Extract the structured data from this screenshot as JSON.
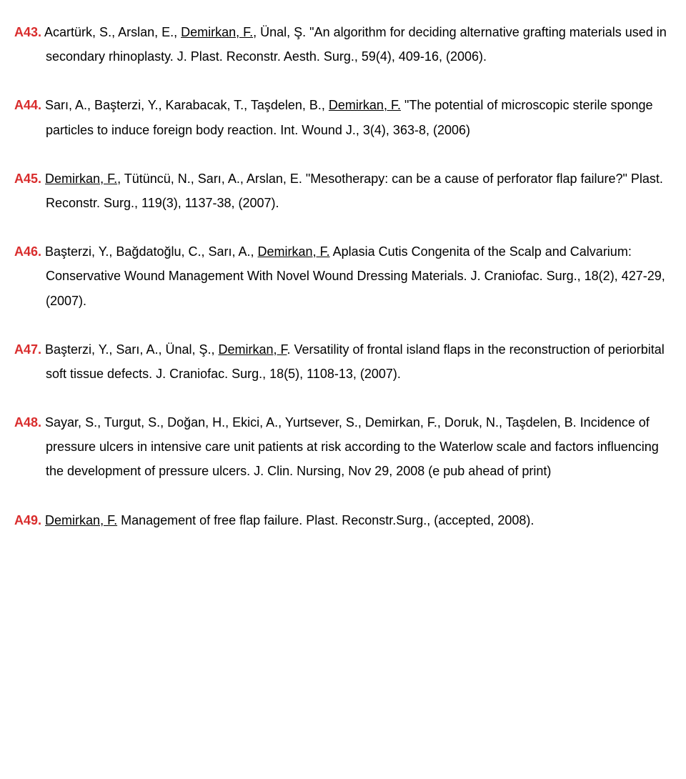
{
  "entries": [
    {
      "id": "A43.",
      "parts": [
        {
          "t": " Acartürk, S., Arslan, E., "
        },
        {
          "t": "Demirkan, F.",
          "u": true
        },
        {
          "t": ", Ünal, Ş. \"An algorithm for deciding alternative grafting materials used in secondary rhinoplasty. J. Plast. Reconstr. Aesth. Surg., 59(4), 409-16, (2006)."
        }
      ]
    },
    {
      "id": "A44.",
      "parts": [
        {
          "t": " Sarı, A., Başterzi, Y., Karabacak, T., Taşdelen, B., "
        },
        {
          "t": "Demirkan, F.",
          "u": true
        },
        {
          "t": " \"The potential of microscopic sterile sponge particles to induce foreign body reaction. Int. Wound J., 3(4), 363-8, (2006)"
        }
      ]
    },
    {
      "id": "A45.",
      "parts": [
        {
          "t": " "
        },
        {
          "t": "Demirkan, F.",
          "u": true
        },
        {
          "t": ", Tütüncü, N., Sarı, A., Arslan, E. \"Mesotherapy: can be a cause of perforator flap failure?\" Plast. Reconstr. Surg., 119(3), 1137-38, (2007)."
        }
      ]
    },
    {
      "id": "A46.",
      "parts": [
        {
          "t": " Başterzi, Y., Bağdatoğlu, C., Sarı, A., "
        },
        {
          "t": "Demirkan, F.",
          "u": true
        },
        {
          "t": " Aplasia Cutis Congenita of the Scalp and Calvarium: Conservative Wound Management With Novel Wound Dressing Materials. J. Craniofac. Surg., 18(2), 427-29, (2007)."
        }
      ]
    },
    {
      "id": "A47.",
      "parts": [
        {
          "t": " Başterzi, Y., Sarı, A., Ünal, Ş., "
        },
        {
          "t": "Demirkan, F",
          "u": true
        },
        {
          "t": ". Versatility of frontal island flaps in the reconstruction of periorbital soft tissue defects. J. Craniofac. Surg., 18(5), 1108-13, (2007)."
        }
      ]
    },
    {
      "id": "A48.",
      "parts": [
        {
          "t": " Sayar, S., Turgut, S., Doğan, H., Ekici, A., Yurtsever, S., Demirkan, F., Doruk, N., Taşdelen, B. Incidence of pressure ulcers in intensive care unit patients at risk according to the Waterlow scale and factors influencing the development of pressure ulcers. J. Clin. Nursing, Nov 29, 2008 (e pub ahead of print)"
        }
      ]
    },
    {
      "id": "A49.",
      "parts": [
        {
          "t": " "
        },
        {
          "t": "Demirkan, F.",
          "u": true
        },
        {
          "t": " Management of free flap failure. Plast. Reconstr.Surg., (accepted, 2008)."
        }
      ]
    }
  ]
}
